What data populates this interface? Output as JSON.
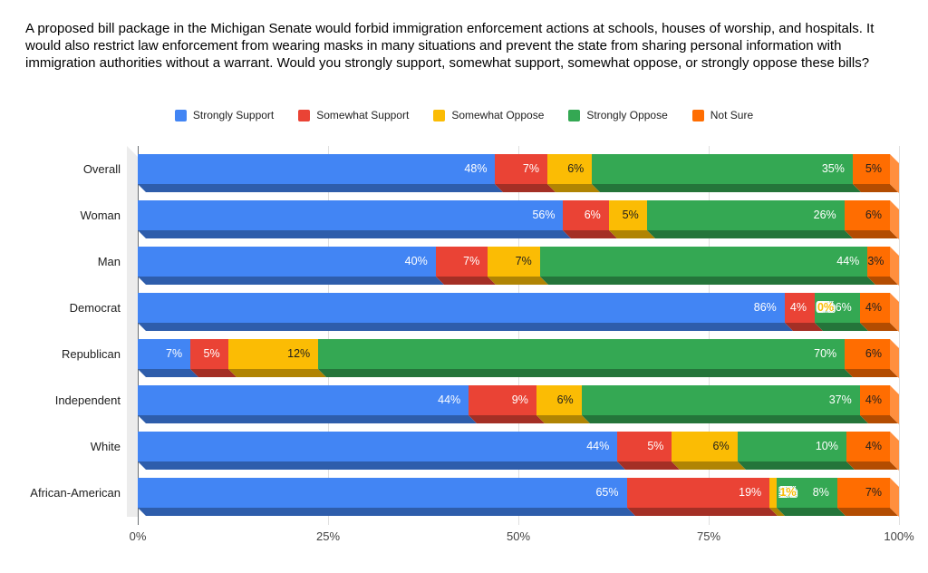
{
  "title": "A proposed bill package in the Michigan Senate would forbid immigration enforcement actions at schools, houses of worship, and hospitals. It would also restrict law enforcement from wearing masks in many situations and prevent the state from sharing personal information with immigration authorities without a warrant. Would you strongly support, somewhat support, somewhat oppose, or strongly oppose these bills?",
  "legend": {
    "position": "top",
    "items": [
      {
        "label": "Strongly Support",
        "color": "#4285F4"
      },
      {
        "label": "Somewhat Support",
        "color": "#EA4335"
      },
      {
        "label": "Somewhat Oppose",
        "color": "#FBBC04"
      },
      {
        "label": "Strongly Oppose",
        "color": "#34A853"
      },
      {
        "label": "Not Sure",
        "color": "#FF6D01"
      }
    ]
  },
  "axis": {
    "tick_labels": [
      "0%",
      "25%",
      "50%",
      "75%",
      "100%"
    ],
    "tick_values": [
      0,
      25,
      50,
      75,
      100
    ]
  },
  "chart_data": {
    "type": "bar",
    "orientation": "horizontal",
    "stacked": "percent",
    "effect": "3d",
    "title": "A proposed bill package in the Michigan Senate would forbid immigration enforcement actions at schools, houses of worship, and hospitals. It would also restrict law enforcement from wearing masks in many situations and prevent the state from sharing personal information with immigration authorities without a warrant. Would you strongly support, somewhat support, somewhat oppose, or strongly oppose these bills?",
    "xlabel": "",
    "ylabel": "",
    "xlim": [
      0,
      100
    ],
    "grid": true,
    "legend_position": "top",
    "value_unit": "%",
    "categories": [
      "Overall",
      "Woman",
      "Man",
      "Democrat",
      "Republican",
      "Independent",
      "White",
      "African-American"
    ],
    "series": [
      {
        "name": "Strongly Support",
        "color": "#4285F4",
        "dark": "#2E5DAB",
        "label_color": "#FFFFFF",
        "values": [
          48,
          56,
          40,
          86,
          7,
          44,
          44,
          65
        ]
      },
      {
        "name": "Somewhat Support",
        "color": "#EA4335",
        "dark": "#A42F25",
        "label_color": "#FFFFFF",
        "values": [
          7,
          6,
          7,
          4,
          5,
          9,
          5,
          19
        ]
      },
      {
        "name": "Somewhat Oppose",
        "color": "#FBBC04",
        "dark": "#B08403",
        "label_color": "#1F1F1F",
        "values": [
          6,
          5,
          7,
          0,
          12,
          6,
          6,
          1
        ]
      },
      {
        "name": "Strongly Oppose",
        "color": "#34A853",
        "dark": "#24753A",
        "label_color": "#FFFFFF",
        "values": [
          35,
          26,
          44,
          6,
          70,
          37,
          10,
          8
        ]
      },
      {
        "name": "Not Sure",
        "color": "#FF6D01",
        "dark": "#B34C01",
        "light": "#FF8F3E",
        "label_color": "#1F1F1F",
        "values": [
          5,
          6,
          3,
          4,
          6,
          4,
          4,
          7
        ]
      }
    ]
  }
}
